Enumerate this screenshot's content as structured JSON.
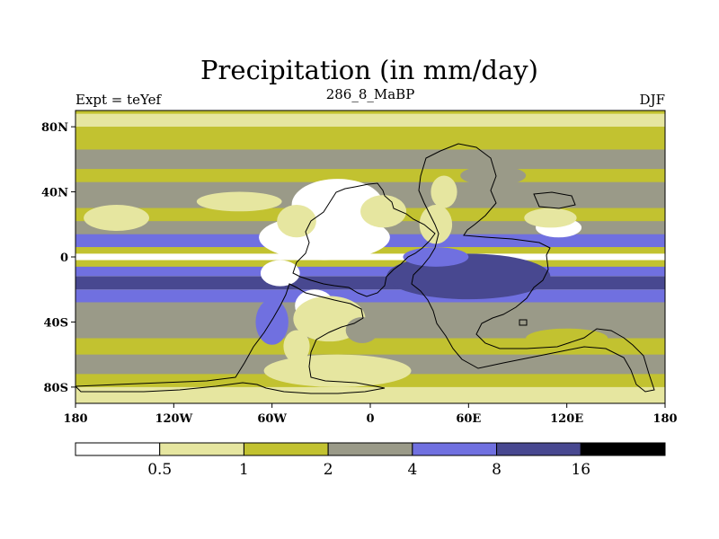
{
  "chart_data": {
    "type": "heatmap",
    "title": "Precipitation (in mm/day)",
    "left_label": "Expt = teYef",
    "center_label": "286_8_MaBP",
    "right_label": "DJF",
    "x_ticks": [
      "180",
      "120W",
      "60W",
      "0",
      "60E",
      "120E",
      "180"
    ],
    "y_ticks": [
      "80N",
      "40N",
      "0",
      "40S",
      "80S"
    ],
    "xlim": [
      -180,
      180
    ],
    "ylim": [
      -90,
      90
    ],
    "colorbar": {
      "levels": [
        "0.5",
        "1",
        "2",
        "4",
        "8",
        "16"
      ],
      "colors": [
        "#ffffff",
        "#e6e6a0",
        "#c2c230",
        "#9a9a88",
        "#7070e0",
        "#484890",
        "#000000"
      ]
    }
  }
}
